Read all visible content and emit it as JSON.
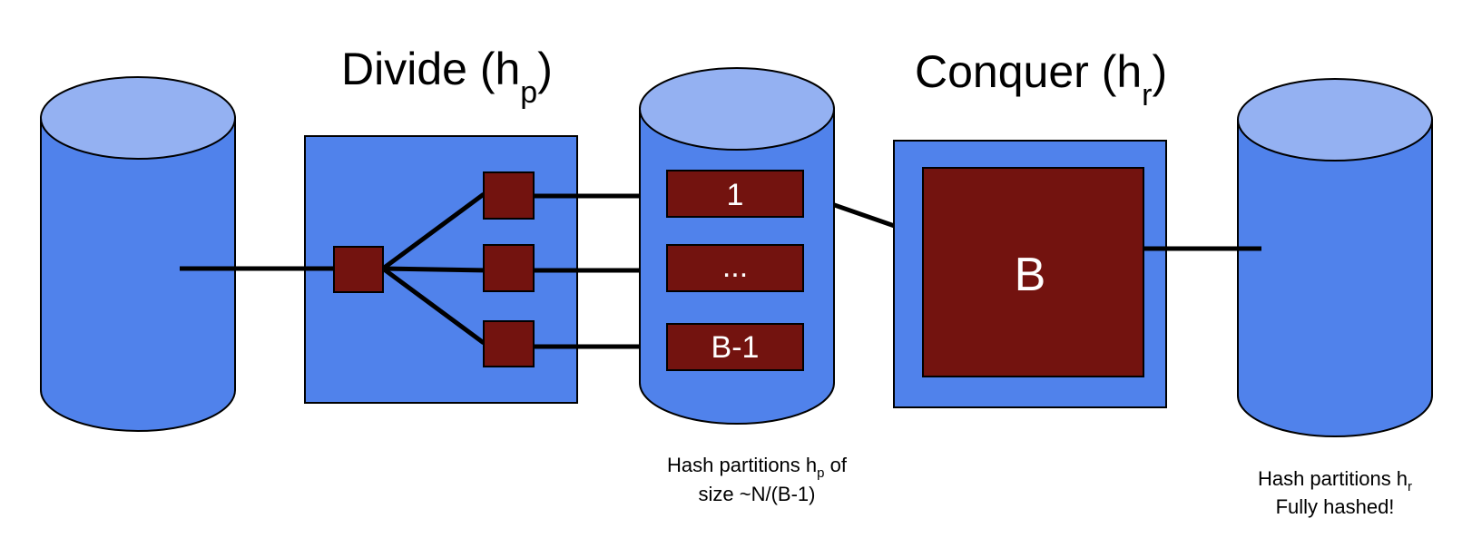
{
  "divide_title": {
    "main": "Divide (h",
    "sub": "p",
    "close": ")"
  },
  "conquer_title": {
    "main": "Conquer (h",
    "sub": "r",
    "close": ")"
  },
  "partitions": [
    "1",
    "...",
    "B-1"
  ],
  "buffer_label": "B",
  "caption_partitions": {
    "line1_main": "Hash partitions h",
    "line1_sub": "p",
    "line1_end": " of",
    "line2": "size ~N/(B-1)"
  },
  "caption_output": {
    "line1_main": "Hash partitions h",
    "line1_sub": "r",
    "line2": "Fully hashed!"
  },
  "colors": {
    "disk_body": "#5082eb",
    "disk_top": "#94b1f2",
    "buffer_box": "#5082eb",
    "page": "#73130f",
    "stroke": "#000000"
  }
}
